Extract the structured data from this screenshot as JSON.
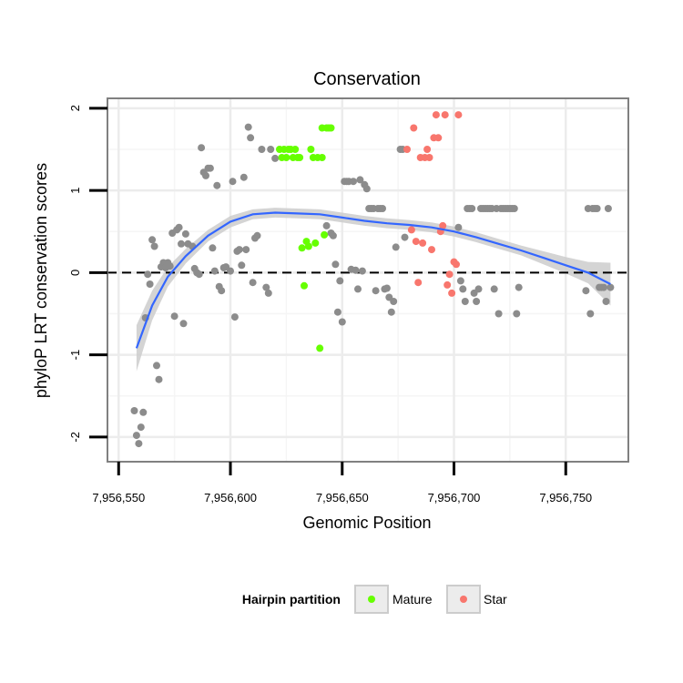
{
  "chart_data": {
    "type": "scatter",
    "title": "Conservation",
    "xlabel": "Genomic Position",
    "ylabel": "phyloP LRT conservation scores",
    "xlim": [
      7956545,
      7956778
    ],
    "ylim": [
      -2.3,
      2.12
    ],
    "x_ticks": [
      7956550,
      7956600,
      7956650,
      7956700,
      7956750
    ],
    "x_tick_labels": [
      "7,956,550",
      "7,956,600",
      "7,956,650",
      "7,956,700",
      "7,956,750"
    ],
    "y_ticks": [
      -2,
      -1,
      0,
      1,
      2
    ],
    "y_tick_labels": [
      "-2",
      "-1",
      "0",
      "1",
      "2"
    ],
    "reference_line_y": 0,
    "legend": {
      "title": "Hairpin partition",
      "entries": [
        {
          "label": "Mature",
          "color": "#66ff00"
        },
        {
          "label": "Star",
          "color": "#f8766d"
        }
      ]
    },
    "colors": {
      "other": "#8c8c8c",
      "Mature": "#66ff00",
      "Star": "#f8766d",
      "smooth_line": "#3366ff",
      "ribbon": "#cccccc"
    },
    "series": [
      {
        "name": "Other",
        "points": [
          [
            7956557,
            -1.68
          ],
          [
            7956558,
            -1.98
          ],
          [
            7956559,
            -2.08
          ],
          [
            7956560,
            -1.88
          ],
          [
            7956561,
            -1.7
          ],
          [
            7956562,
            -0.55
          ],
          [
            7956563,
            -0.02
          ],
          [
            7956564,
            -0.14
          ],
          [
            7956565,
            0.4
          ],
          [
            7956566,
            0.32
          ],
          [
            7956567,
            -1.13
          ],
          [
            7956568,
            -1.3
          ],
          [
            7956569,
            0.07
          ],
          [
            7956570,
            0.12
          ],
          [
            7956571,
            0.06
          ],
          [
            7956572,
            0.12
          ],
          [
            7956573,
            0.08
          ],
          [
            7956574,
            0.48
          ],
          [
            7956575,
            -0.53
          ],
          [
            7956576,
            0.52
          ],
          [
            7956577,
            0.55
          ],
          [
            7956578,
            0.35
          ],
          [
            7956579,
            -0.62
          ],
          [
            7956580,
            0.47
          ],
          [
            7956581,
            0.35
          ],
          [
            7956583,
            0.32
          ],
          [
            7956584,
            0.05
          ],
          [
            7956585,
            0.0
          ],
          [
            7956586,
            -0.02
          ],
          [
            7956587,
            1.52
          ],
          [
            7956588,
            1.22
          ],
          [
            7956589,
            1.18
          ],
          [
            7956590,
            1.27
          ],
          [
            7956591,
            1.27
          ],
          [
            7956592,
            0.3
          ],
          [
            7956593,
            0.02
          ],
          [
            7956594,
            1.06
          ],
          [
            7956595,
            -0.17
          ],
          [
            7956596,
            -0.22
          ],
          [
            7956597,
            0.06
          ],
          [
            7956598,
            0.07
          ],
          [
            7956600,
            0.02
          ],
          [
            7956601,
            1.11
          ],
          [
            7956602,
            -0.54
          ],
          [
            7956603,
            0.26
          ],
          [
            7956604,
            0.28
          ],
          [
            7956605,
            0.09
          ],
          [
            7956606,
            1.16
          ],
          [
            7956607,
            0.28
          ],
          [
            7956608,
            1.77
          ],
          [
            7956609,
            1.64
          ],
          [
            7956610,
            -0.12
          ],
          [
            7956611,
            0.42
          ],
          [
            7956612,
            0.45
          ],
          [
            7956614,
            1.5
          ],
          [
            7956616,
            -0.18
          ],
          [
            7956617,
            -0.25
          ],
          [
            7956618,
            1.5
          ],
          [
            7956620,
            1.39
          ],
          [
            7956643,
            0.57
          ],
          [
            7956645,
            0.48
          ],
          [
            7956646,
            0.45
          ],
          [
            7956647,
            0.1
          ],
          [
            7956648,
            -0.48
          ],
          [
            7956649,
            -0.1
          ],
          [
            7956650,
            -0.6
          ],
          [
            7956651,
            1.11
          ],
          [
            7956652,
            1.11
          ],
          [
            7956653,
            1.11
          ],
          [
            7956654,
            0.04
          ],
          [
            7956655,
            1.11
          ],
          [
            7956656,
            0.03
          ],
          [
            7956657,
            -0.2
          ],
          [
            7956658,
            1.13
          ],
          [
            7956659,
            0.02
          ],
          [
            7956660,
            1.07
          ],
          [
            7956661,
            1.02
          ],
          [
            7956662,
            0.78
          ],
          [
            7956663,
            0.78
          ],
          [
            7956664,
            0.78
          ],
          [
            7956665,
            -0.22
          ],
          [
            7956666,
            0.78
          ],
          [
            7956667,
            0.78
          ],
          [
            7956668,
            0.78
          ],
          [
            7956669,
            -0.2
          ],
          [
            7956670,
            -0.19
          ],
          [
            7956671,
            -0.3
          ],
          [
            7956672,
            -0.48
          ],
          [
            7956673,
            -0.35
          ],
          [
            7956674,
            0.31
          ],
          [
            7956676,
            1.5
          ],
          [
            7956677,
            1.5
          ],
          [
            7956678,
            0.43
          ],
          [
            7956702,
            0.55
          ],
          [
            7956703,
            -0.1
          ],
          [
            7956704,
            -0.2
          ],
          [
            7956705,
            -0.35
          ],
          [
            7956706,
            0.78
          ],
          [
            7956707,
            0.78
          ],
          [
            7956708,
            0.78
          ],
          [
            7956709,
            -0.25
          ],
          [
            7956710,
            -0.35
          ],
          [
            7956711,
            -0.2
          ],
          [
            7956712,
            0.78
          ],
          [
            7956713,
            0.78
          ],
          [
            7956714,
            0.78
          ],
          [
            7956715,
            0.78
          ],
          [
            7956716,
            0.78
          ],
          [
            7956717,
            0.78
          ],
          [
            7956718,
            -0.2
          ],
          [
            7956719,
            0.78
          ],
          [
            7956720,
            -0.5
          ],
          [
            7956721,
            0.78
          ],
          [
            7956722,
            0.78
          ],
          [
            7956723,
            0.78
          ],
          [
            7956724,
            0.78
          ],
          [
            7956725,
            0.78
          ],
          [
            7956726,
            0.78
          ],
          [
            7956727,
            0.78
          ],
          [
            7956728,
            -0.5
          ],
          [
            7956729,
            -0.18
          ],
          [
            7956760,
            0.78
          ],
          [
            7956761,
            -0.5
          ],
          [
            7956762,
            0.78
          ],
          [
            7956763,
            0.78
          ],
          [
            7956764,
            0.78
          ],
          [
            7956765,
            -0.18
          ],
          [
            7956766,
            -0.18
          ],
          [
            7956767,
            -0.18
          ],
          [
            7956768,
            -0.35
          ],
          [
            7956769,
            0.78
          ],
          [
            7956770,
            -0.18
          ],
          [
            7956759,
            -0.22
          ]
        ]
      },
      {
        "name": "Mature",
        "points": [
          [
            7956622,
            1.5
          ],
          [
            7956623,
            1.4
          ],
          [
            7956624,
            1.5
          ],
          [
            7956625,
            1.4
          ],
          [
            7956626,
            1.5
          ],
          [
            7956627,
            1.5
          ],
          [
            7956628,
            1.4
          ],
          [
            7956629,
            1.5
          ],
          [
            7956630,
            1.4
          ],
          [
            7956631,
            1.4
          ],
          [
            7956632,
            0.3
          ],
          [
            7956633,
            -0.16
          ],
          [
            7956634,
            0.38
          ],
          [
            7956635,
            0.32
          ],
          [
            7956636,
            1.5
          ],
          [
            7956637,
            1.4
          ],
          [
            7956638,
            0.36
          ],
          [
            7956639,
            1.4
          ],
          [
            7956640,
            -0.92
          ],
          [
            7956641,
            1.4
          ],
          [
            7956642,
            0.46
          ],
          [
            7956643,
            1.76
          ],
          [
            7956644,
            1.76
          ],
          [
            7956645,
            1.76
          ],
          [
            7956641,
            1.76
          ]
        ]
      },
      {
        "name": "Star",
        "points": [
          [
            7956679,
            1.5
          ],
          [
            7956681,
            0.52
          ],
          [
            7956682,
            1.76
          ],
          [
            7956683,
            0.38
          ],
          [
            7956684,
            -0.12
          ],
          [
            7956685,
            1.4
          ],
          [
            7956686,
            0.36
          ],
          [
            7956687,
            1.4
          ],
          [
            7956688,
            1.5
          ],
          [
            7956689,
            1.4
          ],
          [
            7956690,
            0.28
          ],
          [
            7956691,
            1.64
          ],
          [
            7956692,
            1.92
          ],
          [
            7956693,
            1.64
          ],
          [
            7956694,
            0.5
          ],
          [
            7956695,
            0.57
          ],
          [
            7956696,
            1.92
          ],
          [
            7956697,
            -0.15
          ],
          [
            7956698,
            -0.02
          ],
          [
            7956699,
            -0.25
          ],
          [
            7956700,
            0.13
          ],
          [
            7956701,
            0.1
          ],
          [
            7956702,
            1.92
          ]
        ]
      }
    ],
    "smooth": {
      "x": [
        7956558,
        7956565,
        7956572,
        7956580,
        7956590,
        7956600,
        7956610,
        7956620,
        7956630,
        7956640,
        7956650,
        7956660,
        7956670,
        7956680,
        7956690,
        7956700,
        7956710,
        7956720,
        7956730,
        7956740,
        7956750,
        7956760,
        7956770
      ],
      "y": [
        -0.92,
        -0.4,
        -0.05,
        0.2,
        0.45,
        0.62,
        0.71,
        0.73,
        0.72,
        0.71,
        0.67,
        0.63,
        0.6,
        0.58,
        0.55,
        0.5,
        0.43,
        0.35,
        0.27,
        0.18,
        0.09,
        0.0,
        -0.14
      ],
      "lower": [
        -1.2,
        -0.58,
        -0.17,
        0.11,
        0.38,
        0.55,
        0.65,
        0.67,
        0.66,
        0.65,
        0.61,
        0.57,
        0.54,
        0.52,
        0.49,
        0.44,
        0.37,
        0.29,
        0.21,
        0.1,
        -0.01,
        -0.13,
        -0.4
      ],
      "upper": [
        -0.64,
        -0.22,
        0.07,
        0.29,
        0.52,
        0.69,
        0.77,
        0.79,
        0.78,
        0.77,
        0.73,
        0.69,
        0.66,
        0.64,
        0.61,
        0.56,
        0.49,
        0.41,
        0.33,
        0.26,
        0.19,
        0.13,
        0.12
      ]
    }
  }
}
